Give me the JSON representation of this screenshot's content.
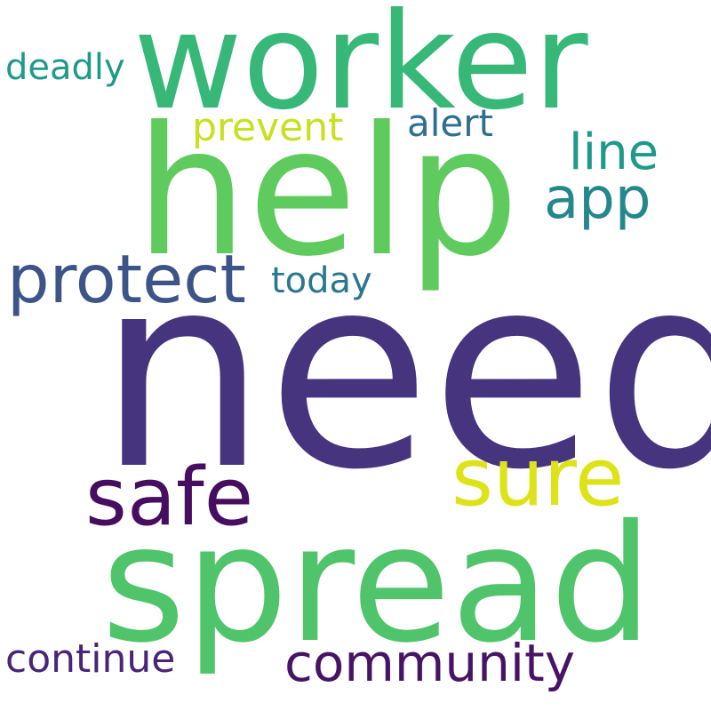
{
  "word_cloud": {
    "background": "#ffffff",
    "words": [
      {
        "text": "need",
        "color": "#46347f"
      },
      {
        "text": "spread",
        "color": "#4fc46a"
      },
      {
        "text": "help",
        "color": "#5fcb5f"
      },
      {
        "text": "worker",
        "color": "#38b878"
      },
      {
        "text": "safe",
        "color": "#470d60"
      },
      {
        "text": "sure",
        "color": "#dde318"
      },
      {
        "text": "protect",
        "color": "#3c5488"
      },
      {
        "text": "community",
        "color": "#471365"
      },
      {
        "text": "continue",
        "color": "#482576"
      },
      {
        "text": "app",
        "color": "#24878e"
      },
      {
        "text": "line",
        "color": "#1f9a8a"
      },
      {
        "text": "alert",
        "color": "#2d6f8e"
      },
      {
        "text": "prevent",
        "color": "#c8e020"
      },
      {
        "text": "deadly",
        "color": "#1f9a8a"
      },
      {
        "text": "today",
        "color": "#2a788e"
      }
    ]
  }
}
